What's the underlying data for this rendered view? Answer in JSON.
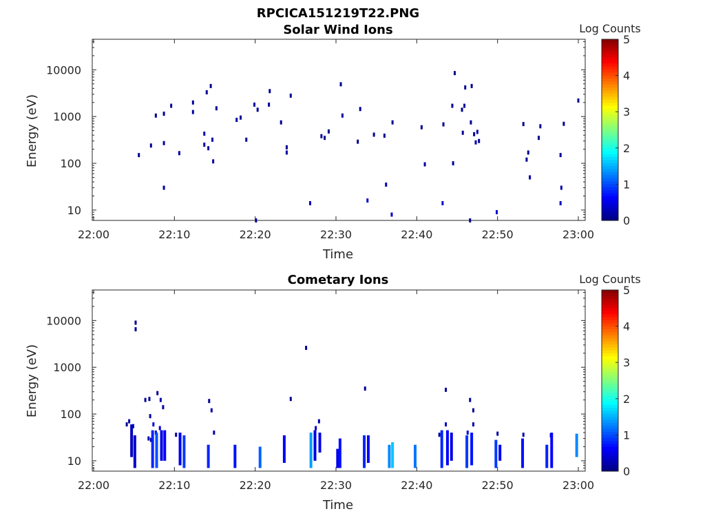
{
  "figure_title": "RPCICA151219T22.PNG",
  "chart_data": [
    {
      "type": "heatmap",
      "title": "Solar Wind Ions",
      "xlabel": "Time",
      "ylabel": "Energy (eV)",
      "y_scale": "log",
      "xlim": [
        "22:00",
        "23:00"
      ],
      "ylim": [
        6,
        45000
      ],
      "x_ticks": [
        "22:00",
        "22:10",
        "22:20",
        "22:30",
        "22:40",
        "22:50",
        "23:00"
      ],
      "y_ticks": [
        "10",
        "100",
        "1000",
        "10000"
      ],
      "colorbar": {
        "label": "Log Counts",
        "ticks": [
          "0",
          "1",
          "2",
          "3",
          "4",
          "5"
        ],
        "range": [
          0,
          5
        ]
      },
      "grid": false,
      "cells": [
        {
          "t": "22:05.6",
          "e": 150,
          "v": 0.1
        },
        {
          "t": "22:07.1",
          "e": 240,
          "v": 0.1
        },
        {
          "t": "22:07.7",
          "e": 1050,
          "v": 0.1
        },
        {
          "t": "22:08.7",
          "e": 1150,
          "v": 0.1
        },
        {
          "t": "22:08.7",
          "e": 270,
          "v": 0.2
        },
        {
          "t": "22:08.7",
          "e": 30,
          "v": 0.2
        },
        {
          "t": "22:09.6",
          "e": 1700,
          "v": 0.1
        },
        {
          "t": "22:10.6",
          "e": 165,
          "v": 0.2
        },
        {
          "t": "22:12.3",
          "e": 2000,
          "v": 0.1
        },
        {
          "t": "22:12.3",
          "e": 1250,
          "v": 0.2
        },
        {
          "t": "22:13.7",
          "e": 430,
          "v": 0.3
        },
        {
          "t": "22:13.7",
          "e": 250,
          "v": 0.2
        },
        {
          "t": "22:14.0",
          "e": 3300,
          "v": 0.1
        },
        {
          "t": "22:14.2",
          "e": 210,
          "v": 0.1
        },
        {
          "t": "22:14.5",
          "e": 4500,
          "v": 0.1
        },
        {
          "t": "22:14.7",
          "e": 320,
          "v": 0.2
        },
        {
          "t": "22:14.8",
          "e": 110,
          "v": 0.1
        },
        {
          "t": "22:15.2",
          "e": 1500,
          "v": 0.1
        },
        {
          "t": "22:17.7",
          "e": 850,
          "v": 0.2
        },
        {
          "t": "22:18.2",
          "e": 950,
          "v": 0.1
        },
        {
          "t": "22:18.9",
          "e": 320,
          "v": 0.1
        },
        {
          "t": "22:19.9",
          "e": 1800,
          "v": 0.2
        },
        {
          "t": "22:20.3",
          "e": 1400,
          "v": 0.1
        },
        {
          "t": "22:21.7",
          "e": 1800,
          "v": 0.1
        },
        {
          "t": "22:21.8",
          "e": 3500,
          "v": 0.1
        },
        {
          "t": "22:23.2",
          "e": 750,
          "v": 0.1
        },
        {
          "t": "22:23.9",
          "e": 220,
          "v": 0.1
        },
        {
          "t": "22:23.9",
          "e": 170,
          "v": 0.2
        },
        {
          "t": "22:24.4",
          "e": 2800,
          "v": 0.1
        },
        {
          "t": "22:26.8",
          "e": 14,
          "v": 0.3
        },
        {
          "t": "22:28.2",
          "e": 380,
          "v": 0.1
        },
        {
          "t": "22:28.6",
          "e": 350,
          "v": 0.1
        },
        {
          "t": "22:29.1",
          "e": 480,
          "v": 0.1
        },
        {
          "t": "22:30.6",
          "e": 4900,
          "v": 0.1
        },
        {
          "t": "22:30.8",
          "e": 1050,
          "v": 0.2
        },
        {
          "t": "22:32.7",
          "e": 290,
          "v": 0.1
        },
        {
          "t": "22:33.0",
          "e": 1450,
          "v": 0.1
        },
        {
          "t": "22:33.9",
          "e": 16,
          "v": 0.4
        },
        {
          "t": "22:34.7",
          "e": 410,
          "v": 0.1
        },
        {
          "t": "22:36.0",
          "e": 390,
          "v": 0.1
        },
        {
          "t": "22:36.2",
          "e": 35,
          "v": 0.2
        },
        {
          "t": "22:36.9",
          "e": 8,
          "v": 0.4
        },
        {
          "t": "22:37.0",
          "e": 750,
          "v": 0.1
        },
        {
          "t": "22:40.6",
          "e": 590,
          "v": 0.1
        },
        {
          "t": "22:41.0",
          "e": 95,
          "v": 0.2
        },
        {
          "t": "22:43.2",
          "e": 14,
          "v": 0.4
        },
        {
          "t": "22:43.3",
          "e": 680,
          "v": 0.1
        },
        {
          "t": "22:44.4",
          "e": 1700,
          "v": 0.1
        },
        {
          "t": "22:44.5",
          "e": 100,
          "v": 0.1
        },
        {
          "t": "22:44.7",
          "e": 8500,
          "v": 0.1
        },
        {
          "t": "22:45.6",
          "e": 1400,
          "v": 0.1
        },
        {
          "t": "22:45.7",
          "e": 450,
          "v": 0.1
        },
        {
          "t": "22:45.9",
          "e": 1700,
          "v": 0.1
        },
        {
          "t": "22:46.0",
          "e": 4200,
          "v": 0.1
        },
        {
          "t": "22:46.6",
          "e": 6,
          "v": 0.1
        },
        {
          "t": "22:46.7",
          "e": 750,
          "v": 0.1
        },
        {
          "t": "22:46.8",
          "e": 4500,
          "v": 0.1
        },
        {
          "t": "22:47.1",
          "e": 420,
          "v": 0.1
        },
        {
          "t": "22:47.3",
          "e": 280,
          "v": 0.2
        },
        {
          "t": "22:47.5",
          "e": 470,
          "v": 0.2
        },
        {
          "t": "22:47.7",
          "e": 300,
          "v": 0.1
        },
        {
          "t": "22:49.9",
          "e": 9,
          "v": 0.4
        },
        {
          "t": "22:53.2",
          "e": 690,
          "v": 0.1
        },
        {
          "t": "22:53.6",
          "e": 120,
          "v": 0.1
        },
        {
          "t": "22:53.8",
          "e": 170,
          "v": 0.1
        },
        {
          "t": "22:54.0",
          "e": 50,
          "v": 0.2
        },
        {
          "t": "22:55.1",
          "e": 350,
          "v": 0.1
        },
        {
          "t": "22:55.3",
          "e": 620,
          "v": 0.1
        },
        {
          "t": "22:57.8",
          "e": 150,
          "v": 0.1
        },
        {
          "t": "22:57.9",
          "e": 30,
          "v": 0.2
        },
        {
          "t": "22:57.8",
          "e": 14,
          "v": 0.3
        },
        {
          "t": "22:58.2",
          "e": 700,
          "v": 0.1
        },
        {
          "t": "23:00.0",
          "e": 2200,
          "v": 0.1
        },
        {
          "t": "22:20.1",
          "e": 6,
          "v": 0.1
        }
      ]
    },
    {
      "type": "heatmap",
      "title": "Cometary Ions",
      "xlabel": "Time",
      "ylabel": "Energy (eV)",
      "y_scale": "log",
      "xlim": [
        "22:00",
        "23:00"
      ],
      "ylim": [
        6,
        45000
      ],
      "x_ticks": [
        "22:00",
        "22:10",
        "22:20",
        "22:30",
        "22:40",
        "22:50",
        "23:00"
      ],
      "y_ticks": [
        "10",
        "100",
        "1000",
        "10000"
      ],
      "colorbar": {
        "label": "Log Counts",
        "ticks": [
          "0",
          "1",
          "2",
          "3",
          "4",
          "5"
        ],
        "range": [
          0,
          5
        ]
      },
      "grid": false,
      "cells": [
        {
          "t": "22:05.2",
          "e": 9000,
          "v": 0.1
        },
        {
          "t": "22:05.2",
          "e": 6500,
          "v": 0.1
        },
        {
          "t": "22:26.3",
          "e": 2600,
          "v": 0.1
        },
        {
          "t": "22:33.6",
          "e": 350,
          "v": 0.1
        },
        {
          "t": "22:43.6",
          "e": 330,
          "v": 0.1
        },
        {
          "t": "22:24.4",
          "e": 210,
          "v": 0.1
        },
        {
          "t": "22:14.3",
          "e": 190,
          "v": 0.1
        },
        {
          "t": "22:14.6",
          "e": 120,
          "v": 0.2
        },
        {
          "t": "22:06.4",
          "e": 200,
          "v": 0.1
        },
        {
          "t": "22:06.9",
          "e": 210,
          "v": 0.1
        },
        {
          "t": "22:07.9",
          "e": 280,
          "v": 0.1
        },
        {
          "t": "22:08.3",
          "e": 200,
          "v": 0.2
        },
        {
          "t": "22:08.6",
          "e": 140,
          "v": 0.2
        },
        {
          "t": "22:04.1",
          "e": 60,
          "v": 0.1
        },
        {
          "t": "22:04.4",
          "e": 70,
          "v": 0.2
        },
        {
          "t": "22:04.9",
          "e": 55,
          "v": 0.3
        },
        {
          "t": "22:07.0",
          "e": 90,
          "v": 0.2
        },
        {
          "t": "22:07.4",
          "e": 60,
          "v": 0.4
        },
        {
          "t": "22:07.7",
          "e": 40,
          "v": 0.3
        },
        {
          "t": "22:08.2",
          "e": 50,
          "v": 0.4
        },
        {
          "t": "22:06.8",
          "e": 30,
          "v": 0.3
        },
        {
          "t": "22:07.1",
          "e": 28,
          "v": 0.2
        },
        {
          "t": "22:10.2",
          "e": 36,
          "v": 0.1
        },
        {
          "t": "22:14.9",
          "e": 40,
          "v": 0.2
        },
        {
          "t": "22:27.5",
          "e": 50,
          "v": 0.3
        },
        {
          "t": "22:27.9",
          "e": 70,
          "v": 0.2
        },
        {
          "t": "22:43.6",
          "e": 60,
          "v": 0.3
        },
        {
          "t": "22:46.6",
          "e": 200,
          "v": 0.1
        },
        {
          "t": "22:47.0",
          "e": 120,
          "v": 0.1
        },
        {
          "t": "22:47.0",
          "e": 60,
          "v": 0.2
        },
        {
          "t": "22:46.3",
          "e": 40,
          "v": 0.4
        },
        {
          "t": "22:56.6",
          "e": 35,
          "v": 0.3
        },
        {
          "t": "22:50.0",
          "e": 38,
          "v": 0.2
        },
        {
          "t": "22:53.2",
          "e": 36,
          "v": 0.2
        },
        {
          "t": "22:42.8",
          "e": 36,
          "v": 0.1
        }
      ],
      "bursts": [
        {
          "t": "22:04.7",
          "emin": 12,
          "emax": 60,
          "v": 0.3
        },
        {
          "t": "22:05.1",
          "emin": 7,
          "emax": 35,
          "v": 0.4
        },
        {
          "t": "22:07.3",
          "emin": 7,
          "emax": 45,
          "v": 0.8
        },
        {
          "t": "22:07.8",
          "emin": 7,
          "emax": 40,
          "v": 1.0
        },
        {
          "t": "22:08.4",
          "emin": 10,
          "emax": 45,
          "v": 0.5
        },
        {
          "t": "22:08.8",
          "emin": 10,
          "emax": 45,
          "v": 0.6
        },
        {
          "t": "22:10.7",
          "emin": 8,
          "emax": 40,
          "v": 0.6
        },
        {
          "t": "22:11.2",
          "emin": 7,
          "emax": 35,
          "v": 0.9
        },
        {
          "t": "22:14.2",
          "emin": 7,
          "emax": 22,
          "v": 0.8
        },
        {
          "t": "22:17.5",
          "emin": 7,
          "emax": 22,
          "v": 0.7
        },
        {
          "t": "22:20.6",
          "emin": 7,
          "emax": 20,
          "v": 1.1
        },
        {
          "t": "22:23.6",
          "emin": 9,
          "emax": 35,
          "v": 0.6
        },
        {
          "t": "22:26.9",
          "emin": 7,
          "emax": 40,
          "v": 1.4
        },
        {
          "t": "22:27.4",
          "emin": 10,
          "emax": 45,
          "v": 0.5
        },
        {
          "t": "22:28.0",
          "emin": 15,
          "emax": 40,
          "v": 0.5
        },
        {
          "t": "22:30.2",
          "emin": 7,
          "emax": 18,
          "v": 0.5
        },
        {
          "t": "22:30.5",
          "emin": 7,
          "emax": 30,
          "v": 0.7
        },
        {
          "t": "22:33.5",
          "emin": 7,
          "emax": 35,
          "v": 0.8
        },
        {
          "t": "22:34.0",
          "emin": 9,
          "emax": 35,
          "v": 0.6
        },
        {
          "t": "22:36.6",
          "emin": 7,
          "emax": 22,
          "v": 1.3
        },
        {
          "t": "22:37.0",
          "emin": 7,
          "emax": 25,
          "v": 1.6
        },
        {
          "t": "22:39.8",
          "emin": 7,
          "emax": 22,
          "v": 1.2
        },
        {
          "t": "22:43.1",
          "emin": 7,
          "emax": 45,
          "v": 0.8
        },
        {
          "t": "22:43.8",
          "emin": 8,
          "emax": 45,
          "v": 0.6
        },
        {
          "t": "22:44.3",
          "emin": 10,
          "emax": 40,
          "v": 0.5
        },
        {
          "t": "22:46.2",
          "emin": 7,
          "emax": 35,
          "v": 0.9
        },
        {
          "t": "22:46.8",
          "emin": 8,
          "emax": 40,
          "v": 0.7
        },
        {
          "t": "22:49.8",
          "emin": 7,
          "emax": 28,
          "v": 0.9
        },
        {
          "t": "22:50.3",
          "emin": 10,
          "emax": 22,
          "v": 0.6
        },
        {
          "t": "22:53.1",
          "emin": 7,
          "emax": 30,
          "v": 0.7
        },
        {
          "t": "22:56.1",
          "emin": 7,
          "emax": 22,
          "v": 0.8
        },
        {
          "t": "22:56.7",
          "emin": 7,
          "emax": 40,
          "v": 0.6
        },
        {
          "t": "22:59.8",
          "emin": 12,
          "emax": 38,
          "v": 1.3
        }
      ]
    }
  ]
}
